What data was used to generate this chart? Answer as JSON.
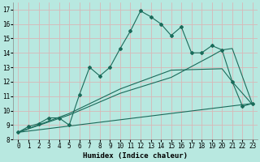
{
  "xlabel": "Humidex (Indice chaleur)",
  "bg_color": "#b8e8e0",
  "grid_color": "#d8b8b8",
  "line_color": "#1a6b5a",
  "xlim": [
    -0.5,
    23.5
  ],
  "ylim": [
    8,
    17.5
  ],
  "xticks": [
    0,
    1,
    2,
    3,
    4,
    5,
    6,
    7,
    8,
    9,
    10,
    11,
    12,
    13,
    14,
    15,
    16,
    17,
    18,
    19,
    20,
    21,
    22,
    23
  ],
  "yticks": [
    8,
    9,
    10,
    11,
    12,
    13,
    14,
    15,
    16,
    17
  ],
  "line1_x": [
    0,
    1,
    2,
    3,
    4,
    5,
    6,
    7,
    8,
    9,
    10,
    11,
    12,
    13,
    14,
    15,
    16,
    17,
    18,
    19,
    20,
    21,
    22,
    23
  ],
  "line1_y": [
    8.5,
    8.9,
    9.1,
    9.5,
    9.5,
    9.0,
    11.1,
    13.0,
    12.4,
    13.0,
    14.3,
    15.5,
    16.9,
    16.5,
    16.0,
    15.2,
    15.8,
    14.0,
    14.0,
    14.5,
    14.2,
    12.0,
    10.3,
    10.5
  ],
  "line2_x": [
    0,
    23
  ],
  "line2_y": [
    8.5,
    10.5
  ],
  "line3_x": [
    0,
    5,
    10,
    15,
    20,
    21,
    23
  ],
  "line3_y": [
    8.5,
    9.8,
    11.5,
    12.8,
    12.9,
    12.0,
    10.4
  ],
  "line4_x": [
    0,
    5,
    10,
    15,
    19,
    20,
    21,
    23
  ],
  "line4_y": [
    8.5,
    9.7,
    11.2,
    12.3,
    13.8,
    14.2,
    14.3,
    10.4
  ]
}
